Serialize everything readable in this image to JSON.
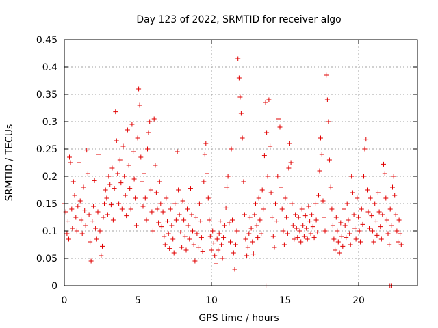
{
  "chart_data": {
    "type": "scatter",
    "title": "Day 123 of 2022, SRMTID for receiver algo",
    "xlabel": "GPS time / hours",
    "ylabel": "SRMTID / TECUs",
    "xlim": [
      0,
      24
    ],
    "ylim": [
      0,
      0.45
    ],
    "x_ticks": [
      0,
      5,
      10,
      15,
      20
    ],
    "x_tick_labels": [
      "0",
      "5",
      "10",
      "15",
      "20"
    ],
    "y_ticks": [
      0,
      0.05,
      0.1,
      0.15,
      0.2,
      0.25,
      0.3,
      0.35,
      0.4,
      0.45
    ],
    "y_tick_labels": [
      "0",
      "0.05",
      "0.1",
      "0.15",
      "0.2",
      "0.25",
      "0.3",
      "0.35",
      "0.4",
      "0.45"
    ],
    "grid": true,
    "marker": "plus",
    "color": "#e00000",
    "series": [
      {
        "name": "SRMTID",
        "points": [
          [
            0.0,
            0.15
          ],
          [
            0.1,
            0.135
          ],
          [
            0.18,
            0.095
          ],
          [
            0.25,
            0.118
          ],
          [
            0.3,
            0.085
          ],
          [
            0.35,
            0.235
          ],
          [
            0.42,
            0.225
          ],
          [
            0.5,
            0.14
          ],
          [
            0.55,
            0.105
          ],
          [
            0.62,
            0.19
          ],
          [
            0.7,
            0.165
          ],
          [
            0.78,
            0.125
          ],
          [
            0.85,
            0.1
          ],
          [
            0.92,
            0.145
          ],
          [
            1.0,
            0.225
          ],
          [
            1.08,
            0.155
          ],
          [
            1.15,
            0.12
          ],
          [
            1.22,
            0.095
          ],
          [
            1.3,
            0.18
          ],
          [
            1.38,
            0.138
          ],
          [
            1.45,
            0.11
          ],
          [
            1.52,
            0.248
          ],
          [
            1.6,
            0.205
          ],
          [
            1.68,
            0.13
          ],
          [
            1.75,
            0.08
          ],
          [
            1.82,
            0.045
          ],
          [
            1.9,
            0.118
          ],
          [
            1.98,
            0.145
          ],
          [
            2.05,
            0.192
          ],
          [
            2.12,
            0.105
          ],
          [
            2.2,
            0.085
          ],
          [
            2.28,
            0.135
          ],
          [
            2.35,
            0.24
          ],
          [
            2.42,
            0.1
          ],
          [
            2.5,
            0.055
          ],
          [
            2.58,
            0.072
          ],
          [
            2.65,
            0.125
          ],
          [
            2.72,
            0.15
          ],
          [
            2.8,
            0.175
          ],
          [
            2.88,
            0.16
          ],
          [
            2.95,
            0.13
          ],
          [
            3.02,
            0.2
          ],
          [
            3.1,
            0.185
          ],
          [
            3.18,
            0.148
          ],
          [
            3.25,
            0.215
          ],
          [
            3.32,
            0.12
          ],
          [
            3.4,
            0.178
          ],
          [
            3.48,
            0.318
          ],
          [
            3.55,
            0.265
          ],
          [
            3.62,
            0.205
          ],
          [
            3.7,
            0.15
          ],
          [
            3.78,
            0.23
          ],
          [
            3.85,
            0.188
          ],
          [
            3.92,
            0.14
          ],
          [
            4.0,
            0.255
          ],
          [
            4.08,
            0.2
          ],
          [
            4.15,
            0.165
          ],
          [
            4.22,
            0.128
          ],
          [
            4.3,
            0.285
          ],
          [
            4.38,
            0.22
          ],
          [
            4.45,
            0.178
          ],
          [
            4.52,
            0.14
          ],
          [
            4.6,
            0.295
          ],
          [
            4.68,
            0.245
          ],
          [
            4.75,
            0.195
          ],
          [
            4.82,
            0.16
          ],
          [
            4.9,
            0.11
          ],
          [
            4.98,
            0.27
          ],
          [
            5.05,
            0.36
          ],
          [
            5.12,
            0.33
          ],
          [
            5.2,
            0.235
          ],
          [
            5.28,
            0.19
          ],
          [
            5.35,
            0.145
          ],
          [
            5.42,
            0.205
          ],
          [
            5.5,
            0.16
          ],
          [
            5.58,
            0.12
          ],
          [
            5.65,
            0.25
          ],
          [
            5.72,
            0.28
          ],
          [
            5.8,
            0.3
          ],
          [
            5.88,
            0.175
          ],
          [
            5.95,
            0.135
          ],
          [
            6.02,
            0.1
          ],
          [
            6.1,
            0.305
          ],
          [
            6.18,
            0.22
          ],
          [
            6.25,
            0.17
          ],
          [
            6.32,
            0.14
          ],
          [
            6.4,
            0.115
          ],
          [
            6.48,
            0.19
          ],
          [
            6.55,
            0.15
          ],
          [
            6.62,
            0.108
          ],
          [
            6.7,
            0.135
          ],
          [
            6.78,
            0.09
          ],
          [
            6.85,
            0.075
          ],
          [
            6.92,
            0.16
          ],
          [
            7.0,
            0.118
          ],
          [
            7.08,
            0.095
          ],
          [
            7.15,
            0.068
          ],
          [
            7.22,
            0.14
          ],
          [
            7.3,
            0.11
          ],
          [
            7.38,
            0.085
          ],
          [
            7.45,
            0.06
          ],
          [
            7.52,
            0.15
          ],
          [
            7.6,
            0.12
          ],
          [
            7.68,
            0.245
          ],
          [
            7.75,
            0.175
          ],
          [
            7.82,
            0.13
          ],
          [
            7.9,
            0.098
          ],
          [
            7.98,
            0.07
          ],
          [
            8.05,
            0.155
          ],
          [
            8.12,
            0.12
          ],
          [
            8.2,
            0.09
          ],
          [
            8.28,
            0.065
          ],
          [
            8.35,
            0.14
          ],
          [
            8.42,
            0.11
          ],
          [
            8.5,
            0.085
          ],
          [
            8.58,
            0.178
          ],
          [
            8.65,
            0.13
          ],
          [
            8.72,
            0.1
          ],
          [
            8.8,
            0.075
          ],
          [
            8.88,
            0.045
          ],
          [
            8.95,
            0.125
          ],
          [
            9.02,
            0.095
          ],
          [
            9.1,
            0.07
          ],
          [
            9.18,
            0.15
          ],
          [
            9.25,
            0.118
          ],
          [
            9.32,
            0.088
          ],
          [
            9.4,
            0.062
          ],
          [
            9.48,
            0.19
          ],
          [
            9.55,
            0.24
          ],
          [
            9.62,
            0.26
          ],
          [
            9.7,
            0.205
          ],
          [
            9.78,
            0.16
          ],
          [
            9.85,
            0.12
          ],
          [
            9.92,
            0.09
          ],
          [
            10.0,
            0.065
          ],
          [
            10.08,
            0.1
          ],
          [
            10.15,
            0.078
          ],
          [
            10.22,
            0.055
          ],
          [
            10.3,
            0.04
          ],
          [
            10.38,
            0.085
          ],
          [
            10.45,
            0.065
          ],
          [
            10.52,
            0.095
          ],
          [
            10.6,
            0.118
          ],
          [
            10.68,
            0.075
          ],
          [
            10.75,
            0.05
          ],
          [
            10.82,
            0.088
          ],
          [
            10.9,
            0.11
          ],
          [
            10.98,
            0.142
          ],
          [
            11.05,
            0.18
          ],
          [
            11.12,
            0.2
          ],
          [
            11.2,
            0.115
          ],
          [
            11.28,
            0.08
          ],
          [
            11.35,
            0.25
          ],
          [
            11.42,
            0.12
          ],
          [
            11.5,
            0.06
          ],
          [
            11.58,
            0.03
          ],
          [
            11.65,
            0.075
          ],
          [
            11.72,
            0.1
          ],
          [
            11.8,
            0.415
          ],
          [
            11.88,
            0.38
          ],
          [
            11.95,
            0.345
          ],
          [
            12.02,
            0.315
          ],
          [
            12.1,
            0.27
          ],
          [
            12.18,
            0.19
          ],
          [
            12.25,
            0.13
          ],
          [
            12.32,
            0.085
          ],
          [
            12.4,
            0.055
          ],
          [
            12.48,
            0.07
          ],
          [
            12.55,
            0.095
          ],
          [
            12.62,
            0.125
          ],
          [
            12.7,
            0.105
          ],
          [
            12.78,
            0.08
          ],
          [
            12.85,
            0.058
          ],
          [
            12.92,
            0.13
          ],
          [
            13.0,
            0.15
          ],
          [
            13.08,
            0.11
          ],
          [
            13.15,
            0.088
          ],
          [
            13.22,
            0.16
          ],
          [
            13.3,
            0.12
          ],
          [
            13.38,
            0.095
          ],
          [
            13.45,
            0.175
          ],
          [
            13.52,
            0.14
          ],
          [
            13.6,
            0.238
          ],
          [
            13.68,
            0.335
          ],
          [
            13.75,
            0.28
          ],
          [
            13.82,
            0.2
          ],
          [
            13.9,
            0.34
          ],
          [
            13.98,
            0.255
          ],
          [
            14.05,
            0.17
          ],
          [
            14.12,
            0.125
          ],
          [
            14.2,
            0.09
          ],
          [
            14.28,
            0.07
          ],
          [
            14.35,
            0.15
          ],
          [
            14.42,
            0.118
          ],
          [
            14.5,
            0.2
          ],
          [
            14.58,
            0.305
          ],
          [
            14.65,
            0.29
          ],
          [
            14.72,
            0.18
          ],
          [
            14.8,
            0.14
          ],
          [
            14.88,
            0.1
          ],
          [
            14.95,
            0.075
          ],
          [
            15.02,
            0.16
          ],
          [
            15.1,
            0.125
          ],
          [
            15.18,
            0.095
          ],
          [
            15.25,
            0.215
          ],
          [
            15.32,
            0.26
          ],
          [
            15.4,
            0.225
          ],
          [
            15.48,
            0.15
          ],
          [
            15.55,
            0.11
          ],
          [
            15.62,
            0.085
          ],
          [
            15.7,
            0.13
          ],
          [
            15.78,
            0.105
          ],
          [
            15.85,
            0.088
          ],
          [
            15.92,
            0.125
          ],
          [
            16.0,
            0.1
          ],
          [
            16.08,
            0.08
          ],
          [
            16.15,
            0.14
          ],
          [
            16.22,
            0.11
          ],
          [
            16.3,
            0.09
          ],
          [
            16.38,
            0.128
          ],
          [
            16.45,
            0.105
          ],
          [
            16.52,
            0.085
          ],
          [
            16.6,
            0.145
          ],
          [
            16.68,
            0.118
          ],
          [
            16.75,
            0.095
          ],
          [
            16.82,
            0.13
          ],
          [
            16.9,
            0.108
          ],
          [
            16.98,
            0.088
          ],
          [
            17.05,
            0.15
          ],
          [
            17.12,
            0.12
          ],
          [
            17.2,
            0.098
          ],
          [
            17.28,
            0.165
          ],
          [
            17.35,
            0.21
          ],
          [
            17.42,
            0.27
          ],
          [
            17.5,
            0.24
          ],
          [
            17.58,
            0.155
          ],
          [
            17.65,
            0.125
          ],
          [
            17.72,
            0.1
          ],
          [
            17.8,
            0.385
          ],
          [
            17.88,
            0.34
          ],
          [
            17.95,
            0.3
          ],
          [
            18.02,
            0.23
          ],
          [
            18.1,
            0.18
          ],
          [
            18.18,
            0.14
          ],
          [
            18.25,
            0.11
          ],
          [
            18.32,
            0.085
          ],
          [
            18.4,
            0.065
          ],
          [
            18.48,
            0.125
          ],
          [
            18.55,
            0.1
          ],
          [
            18.62,
            0.08
          ],
          [
            18.7,
            0.06
          ],
          [
            18.78,
            0.115
          ],
          [
            18.85,
            0.09
          ],
          [
            18.92,
            0.072
          ],
          [
            19.0,
            0.14
          ],
          [
            19.08,
            0.11
          ],
          [
            19.15,
            0.088
          ],
          [
            19.22,
            0.15
          ],
          [
            19.3,
            0.12
          ],
          [
            19.38,
            0.095
          ],
          [
            19.45,
            0.075
          ],
          [
            19.52,
            0.2
          ],
          [
            19.6,
            0.17
          ],
          [
            19.68,
            0.13
          ],
          [
            19.75,
            0.105
          ],
          [
            19.82,
            0.085
          ],
          [
            19.9,
            0.16
          ],
          [
            19.98,
            0.125
          ],
          [
            20.05,
            0.1
          ],
          [
            20.12,
            0.08
          ],
          [
            20.2,
            0.14
          ],
          [
            20.28,
            0.112
          ],
          [
            20.35,
            0.2
          ],
          [
            20.42,
            0.25
          ],
          [
            20.5,
            0.268
          ],
          [
            20.58,
            0.175
          ],
          [
            20.65,
            0.135
          ],
          [
            20.72,
            0.105
          ],
          [
            20.8,
            0.16
          ],
          [
            20.88,
            0.128
          ],
          [
            20.95,
            0.1
          ],
          [
            21.02,
            0.08
          ],
          [
            21.1,
            0.15
          ],
          [
            21.18,
            0.118
          ],
          [
            21.25,
            0.092
          ],
          [
            21.32,
            0.17
          ],
          [
            21.4,
            0.135
          ],
          [
            21.48,
            0.108
          ],
          [
            21.55,
            0.085
          ],
          [
            21.62,
            0.13
          ],
          [
            21.7,
            0.222
          ],
          [
            21.78,
            0.205
          ],
          [
            21.85,
            0.16
          ],
          [
            21.92,
            0.12
          ],
          [
            22.0,
            0.095
          ],
          [
            22.08,
            0.075
          ],
          [
            22.15,
            0.14
          ],
          [
            22.22,
            0.11
          ],
          [
            22.3,
            0.18
          ],
          [
            22.38,
            0.2
          ],
          [
            22.45,
            0.165
          ],
          [
            22.52,
            0.13
          ],
          [
            22.6,
            0.1
          ],
          [
            22.68,
            0.08
          ],
          [
            22.75,
            0.12
          ],
          [
            22.82,
            0.095
          ],
          [
            22.9,
            0.075
          ],
          [
            13.7,
            0.0
          ],
          [
            22.1,
            0.0
          ],
          [
            22.2,
            0.0
          ],
          [
            22.25,
            0.0
          ]
        ]
      }
    ]
  }
}
